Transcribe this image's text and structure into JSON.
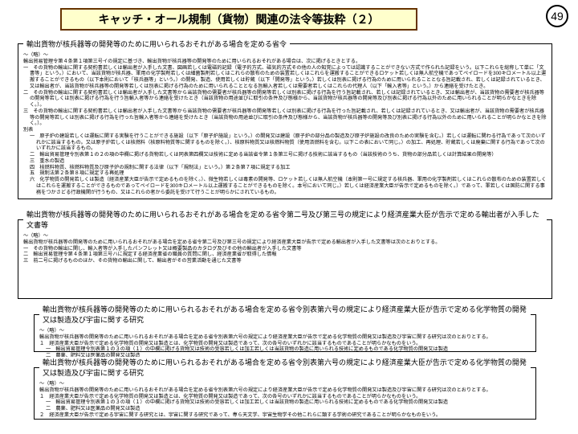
{
  "page_number": "49",
  "title": "キャッチ・オール規制（貨物）関連の法令等抜粋（２）",
  "colors": {
    "title_bg": "#ffffcc",
    "title_border": "#663300",
    "text": "#000000",
    "bg": "#ffffff"
  },
  "sec1": {
    "legend": "輸出貨物が核兵器等の開発等のために用いられるおそれがある場合を定める省令",
    "ryaku": "～（略）～",
    "intro": "輸出貿易管理令第４条第１項第三号イの規定に基づき、輸出貨物が核兵器等の開発等のために用いられるおそれがある場合は、次に掲げるときとする。",
    "i1": "一　その貨物の輸出に関する契約書若しくは輸出者が入手した文書、図画若しくは電磁的記録（電子的方式、磁気的方式その他の人の知覚によっては認識することができない方式で作られた記録をいう。以下これらを総称して単に「文書等」という。）において、当該貨物が核兵器、軍用の化学製剤若しくは細菌製剤若しくはこれらの散布のための装置若しくはこれらを運搬することができるロケット若しくは無人航空機であってペイロードを300キロメートル以上運搬することができるもの（以下本則において「核兵器等」という。）の開発、製造、使用若しくは貯蔵（以下「開発等」という。）若しくは別表に掲げる行為のために用いられることとなる旨記載され、若しくは記録されているとき、又は輸出者が、当該貨物が核兵器等の開発等若しくは別表に掲げる行為のために用いられることとなる旨輸入者若しくは需要者若しくはこれらの代理人（以下「輸入者等」という。）から連絡を受けたとき。",
    "i2": "二　その貨物の輸出に関する契約書若しくは輸出者が入手した文書等から当該貨物の需要者が核兵器等の開発等若しくは別表に掲げる行為を行う旨記載され、若しくは記録されているとき、又は輸出者が、当該貨物の需要者が核兵器等の開発等若しくは別表に掲げる行為を行う旨輸入者等から連絡を受けたとき（当該貨物の用途並びに取引の条件及び態様から、当該貨物が核兵器等の開発等及び別表に掲げる行為以外のために用いられることが明らかなときを除く。）。",
    "i3": "三　その貨物の輸出に関する契約書若しくは輸出者が入手した文書等から当該貨物の需要者が核兵器等の開発等若しくは別表に掲げる行為を行った旨記載され、若しくは記録されているとき、又は輸出者が、当該貨物の需要者が核兵器等の開発等若しくは別表に掲げる行為を行った旨輸入者等から連絡を受けたとき（当該貨物の用途並びに取引の条件及び態様から、当該貨物が核兵器等の開発等及び別表に掲げる行為以外のために用いられることが明らかなときを除く。）。",
    "bessyo_h": "別表",
    "b1": "一　原子炉の建設若しくは運転に関する実験を行うことができる施設（以下「原子炉施設」という。）の開発又は建設（原子炉の部分品の製造及び原子炉施設の改良のための実験を含む。）若しくは運転に関わる行為であって次のいずれかに該当するもの。又は原子炉若しくは核燃料（核原料物質等に関するものを除く。）、核原料物質又は核燃料物質（使用済燃料を含む。以下この表において同じ。）の加工、再処理、貯蔵若しくは廃棄に関する行為であって次のいずれかに該当するもの。",
    "b2": "二　輸出貿易管理令別表第１の２の項の中欄に掲げる貨物若しくは同表第四欄又は技術に定める当該省令第１条第三号に掲げる技術に該当するもの（当該技術のうち、貨物の部分品若しくは計算結果の開発等）",
    "b3": "三　重水の製造",
    "b4": "四　核燃料物質、核燃料物質及び原子炉の規制に関する法律（以下「規制法」という。）第２条第７項に規定する加工",
    "b5": "五　規制法第２条第８項に規定する再処理",
    "b6": "六　化学物質の開発若しくは製造（経済産業大臣が告示で定めるものを除く。）、微生物若しくは毒素の開発等、ロケット若しくは無人航空機（本則第一号に規定する核兵器、軍用の化学製剤若しくはこれらの散布のための装置若しくはこれらを運搬することができるものであってペイロードを300キロメートル以上運搬することができるものを除く。本号において同じ。）若しくは経済産業大臣が告示で定めるものを除く。）であって、軍若しくは国防に関する事務をつかさどる行政機関が行うもの、又はこれらの者から委託を受けて行うことが明らかにされているもの。"
  },
  "sec2": {
    "legend": "輸出貨物が核兵器等の開発等のために用いられるおそれがある場合を定める省令第二号及び第三号の規定により経済産業大臣が告示で定める輸出者が入手した文書等",
    "ryaku": "～（略）～",
    "l1": "輸出貨物が核兵器等の開発等のために用いられるおそれがある場合を定める省令第二号及び第三号の規定により経済産業大臣が告示で定める輸出者が入手した文書等は次のとおりとする。",
    "i1": "一　その貨物の輸出に関し、輸入者等が入手したパンフレット又は概要製品のカタログ及びその他の輸出者が入手した文書等",
    "i2": "二　輸出貿易管理令第４条第１項第三号ハに規定する経済産業省の職員の質問に関し、経済産業省が取得した情報",
    "i3": "三　前二号に掲げるもののほか、その貨物の輸出に関して、輸出者がその営業活動を通じた文書等"
  },
  "sec3": {
    "legend": "輸出貨物が核兵器等の開発等のために用いられるおそれがある場合を定める省令別表第六号の規定により経済産業大臣が告示で定める化学物質の開発又は製造及び宇宙に関する研究",
    "ryaku": "～（略）～",
    "l1": "輸出貨物が核兵器等の開発等のために用いられるおそれがある場合を定める省令別表第六号の規定により経済産業大臣が告示で定める化学物質の開発又は製造及び宇宙に関する研究は次のとおりとする。",
    "i1": "１　経済産業大臣が告示で定める化学物質の開発又は製造とは、化学物質の開発又は製造であって、次の各号のいずれかに該当するものであることが明らかなものをいう。",
    "i2a": "一　輸出貿易管理令別表第１の３の項（１）の中欄に掲げる貨物又は技術の受容若しくは加工若しくは当該貨物の製造に用いられる技術に定めるものである化学物質の開発又は製造",
    "i2b": "二　農薬、肥料又は医薬品の開発又は製造",
    "i3": "２　経済産業大臣が告示で定める宇宙に関する研究とは、宇宙に関する研究であって、専ら天文学、宇宙生物学その他これらに類する学術の研究であることが明らかなものをいう。"
  }
}
